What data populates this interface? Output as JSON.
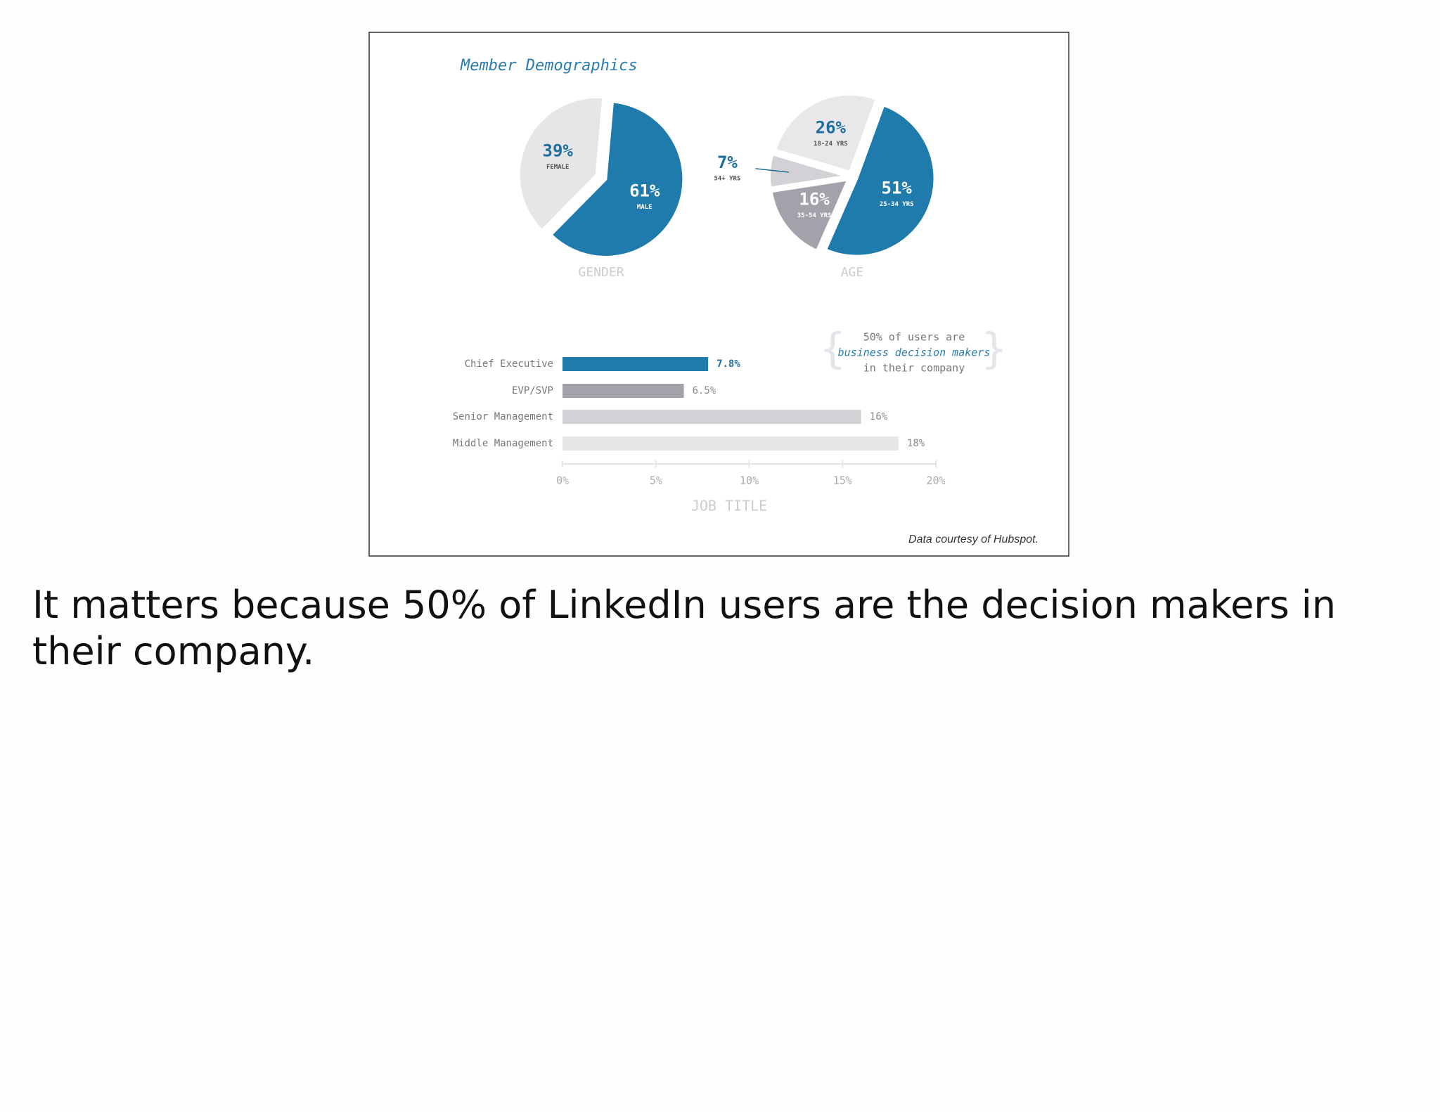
{
  "title": "Member Demographics",
  "source": "Data courtesy of Hubspot.",
  "caption": "It matters because 50% of LinkedIn users are the decision makers in their company.",
  "chart_data": [
    {
      "type": "pie",
      "label": "GENDER",
      "categories": [
        "MALE",
        "FEMALE"
      ],
      "values": [
        61,
        39
      ],
      "value_labels": [
        "61%",
        "39%"
      ],
      "colors": [
        "#1f7bab",
        "#e6e6e9"
      ]
    },
    {
      "type": "pie",
      "label": "AGE",
      "categories": [
        "25-34 YRS",
        "35-54 YRS",
        "54+ YRS",
        "18-24 YRS"
      ],
      "values": [
        51,
        16,
        7,
        26
      ],
      "value_labels": [
        "51%",
        "16%",
        "7%",
        "26%"
      ],
      "colors": [
        "#1f7bab",
        "#a2a2aa",
        "#d2d2d6",
        "#e8e8eb"
      ]
    },
    {
      "type": "hbar",
      "xlabel": "JOB TITLE",
      "categories": [
        "Chief Executive",
        "EVP/SVP",
        "Senior Management",
        "Middle Management"
      ],
      "values": [
        7.8,
        6.5,
        16,
        18
      ],
      "value_labels": [
        "7.8%",
        "6.5%",
        "16%",
        "18%"
      ],
      "colors": [
        "#1f7bab",
        "#a2a2aa",
        "#d2d2d6",
        "#e6e6e9"
      ],
      "xlim": [
        0,
        20
      ],
      "xticks": [
        {
          "value": 0,
          "label": "0%"
        },
        {
          "value": 5,
          "label": "5%"
        },
        {
          "value": 10,
          "label": "10%"
        },
        {
          "value": 15,
          "label": "15%"
        },
        {
          "value": 20,
          "label": "20%"
        }
      ],
      "annotation": [
        "50% of users are",
        "business decision makers",
        "in their company"
      ]
    }
  ]
}
